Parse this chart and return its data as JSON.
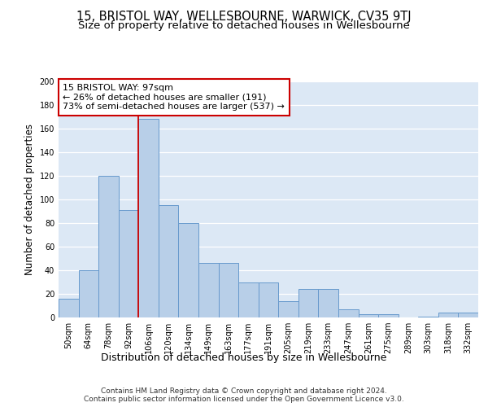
{
  "title": "15, BRISTOL WAY, WELLESBOURNE, WARWICK, CV35 9TJ",
  "subtitle": "Size of property relative to detached houses in Wellesbourne",
  "xlabel": "Distribution of detached houses by size in Wellesbourne",
  "ylabel": "Number of detached properties",
  "categories": [
    "50sqm",
    "64sqm",
    "78sqm",
    "92sqm",
    "106sqm",
    "120sqm",
    "134sqm",
    "149sqm",
    "163sqm",
    "177sqm",
    "191sqm",
    "205sqm",
    "219sqm",
    "233sqm",
    "247sqm",
    "261sqm",
    "275sqm",
    "289sqm",
    "303sqm",
    "318sqm",
    "332sqm"
  ],
  "values": [
    16,
    40,
    120,
    91,
    168,
    95,
    80,
    46,
    46,
    30,
    30,
    14,
    24,
    24,
    7,
    3,
    3,
    0,
    1,
    4,
    4
  ],
  "bar_color": "#b8cfe8",
  "bar_edge_color": "#6699cc",
  "background_color": "#dce8f5",
  "grid_color": "#ffffff",
  "vline_x": 3.5,
  "vline_color": "#cc0000",
  "annotation_text": "15 BRISTOL WAY: 97sqm\n← 26% of detached houses are smaller (191)\n73% of semi-detached houses are larger (537) →",
  "annotation_box_color": "#ffffff",
  "annotation_box_edge": "#cc0000",
  "footer_text": "Contains HM Land Registry data © Crown copyright and database right 2024.\nContains public sector information licensed under the Open Government Licence v3.0.",
  "title_fontsize": 10.5,
  "subtitle_fontsize": 9.5,
  "ylabel_fontsize": 8.5,
  "xlabel_fontsize": 9,
  "tick_fontsize": 7,
  "annotation_fontsize": 8,
  "footer_fontsize": 6.5,
  "ylim": [
    0,
    200
  ],
  "yticks": [
    0,
    20,
    40,
    60,
    80,
    100,
    120,
    140,
    160,
    180,
    200
  ]
}
